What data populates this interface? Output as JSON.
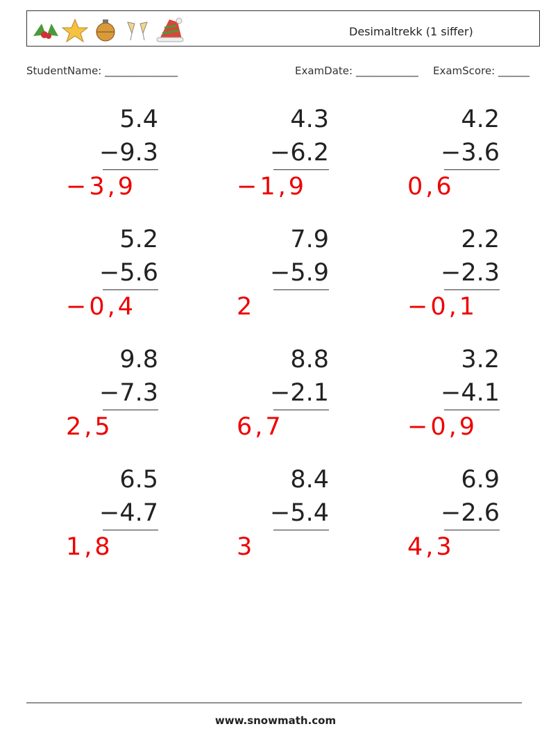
{
  "header": {
    "title": "Desimaltrekk (1 siffer)"
  },
  "fields": {
    "student_name": "StudentName: ______________",
    "exam_date": "ExamDate: ____________",
    "exam_score": "ExamScore: ______"
  },
  "problems": [
    {
      "top": "5.4",
      "bottom": "−9.3",
      "answer": "−3,9"
    },
    {
      "top": "4.3",
      "bottom": "−6.2",
      "answer": "−1,9"
    },
    {
      "top": "4.2",
      "bottom": "−3.6",
      "answer": "0,6"
    },
    {
      "top": "5.2",
      "bottom": "−5.6",
      "answer": "−0,4"
    },
    {
      "top": "7.9",
      "bottom": "−5.9",
      "answer": "2"
    },
    {
      "top": "2.2",
      "bottom": "−2.3",
      "answer": "−0,1"
    },
    {
      "top": "9.8",
      "bottom": "−7.3",
      "answer": "2,5"
    },
    {
      "top": "8.8",
      "bottom": "−2.1",
      "answer": "6,7"
    },
    {
      "top": "3.2",
      "bottom": "−4.1",
      "answer": "−0,9"
    },
    {
      "top": "6.5",
      "bottom": "−4.7",
      "answer": "1,8"
    },
    {
      "top": "8.4",
      "bottom": "−5.4",
      "answer": "3"
    },
    {
      "top": "6.9",
      "bottom": "−2.6",
      "answer": "4,3"
    }
  ],
  "footer": {
    "url": "www.snowmath.com"
  }
}
